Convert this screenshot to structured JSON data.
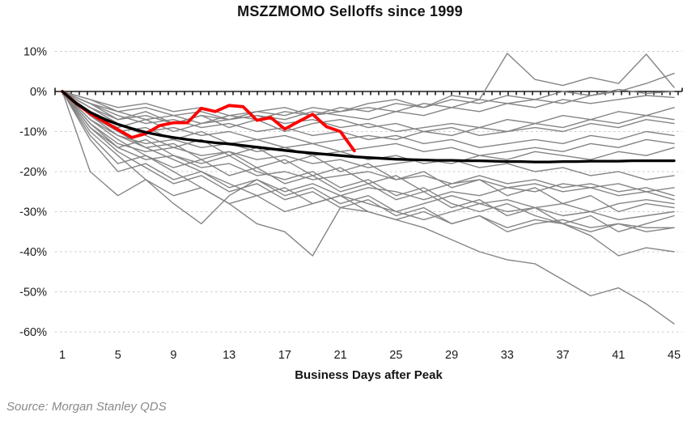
{
  "title": "MSZZMOMO Selloffs since 1999",
  "source": "Source: Morgan Stanley QDS",
  "colors": {
    "background": "#ffffff",
    "gridline": "#c9c9c9",
    "axis": "#1a1a1a",
    "text": "#1a1a1a",
    "source_text": "#8a8a8a",
    "historical": "#858585",
    "average": "#000000",
    "current": "#fe0000"
  },
  "chart_data": {
    "type": "line",
    "title": "MSZZMOMO Selloffs since 1999",
    "xlabel": "Business Days after Peak",
    "ylabel": "",
    "x_range_days": [
      1,
      45
    ],
    "y_range_pct": [
      -60,
      10
    ],
    "grid": "horizontal dashed gridlines every 10%; solid tick-marked axis line at 0%",
    "legend": "none",
    "x_ticks": [
      1,
      5,
      9,
      13,
      17,
      21,
      25,
      29,
      33,
      37,
      41,
      45
    ],
    "y_ticks": [
      {
        "label": "10%",
        "value": 10
      },
      {
        "label": "0%",
        "value": 0
      },
      {
        "label": "-10%",
        "value": -10
      },
      {
        "label": "-20%",
        "value": -20
      },
      {
        "label": "-30%",
        "value": -30
      },
      {
        "label": "-40%",
        "value": -40
      },
      {
        "label": "-50%",
        "value": -50
      },
      {
        "label": "-60%",
        "value": -60
      }
    ],
    "historical_x_days": [
      1,
      3,
      5,
      7,
      9,
      11,
      13,
      15,
      17,
      19,
      21,
      23,
      25,
      27,
      29,
      31,
      33,
      35,
      37,
      39,
      41,
      43,
      45
    ],
    "series": [
      {
        "name": "historical-selloff-01",
        "role": "historical",
        "color": "#858585",
        "width": 1.4,
        "x": "shared",
        "y": [
          0,
          -4,
          -7,
          -6,
          -8,
          -6,
          -7,
          -5,
          -6,
          -4,
          -5,
          -3,
          -2,
          -4,
          -1,
          -2,
          9.5,
          3,
          1.5,
          3.5,
          2,
          9.3,
          1
        ]
      },
      {
        "name": "historical-selloff-02",
        "role": "historical",
        "color": "#858585",
        "width": 1.4,
        "x": "shared",
        "y": [
          0,
          -3,
          -5,
          -7,
          -6,
          -8,
          -7,
          -6,
          -7,
          -5,
          -6,
          -7,
          -5,
          -6,
          -4,
          -5,
          -3,
          -2,
          -3,
          -1,
          0,
          2,
          4.5
        ]
      },
      {
        "name": "historical-selloff-03",
        "role": "historical",
        "color": "#858585",
        "width": 1.4,
        "x": "shared",
        "y": [
          0,
          -2,
          -4,
          -3,
          -5,
          -4,
          -6,
          -5,
          -4,
          -6,
          -5,
          -4,
          -5,
          -3,
          -4,
          -2,
          -3,
          -4,
          -2,
          -3,
          -2,
          -1,
          -1.5
        ]
      },
      {
        "name": "historical-selloff-04",
        "role": "historical",
        "color": "#858585",
        "width": 1.4,
        "x": "shared",
        "y": [
          0,
          -5,
          -8,
          -10,
          -9,
          -11,
          -10,
          -12,
          -11,
          -13,
          -12,
          -11,
          -12,
          -10,
          -11,
          -9,
          -10,
          -8,
          -9,
          -7,
          -8,
          -6,
          -7
        ]
      },
      {
        "name": "historical-selloff-05",
        "role": "historical",
        "color": "#858585",
        "width": 1.4,
        "x": "shared",
        "y": [
          0,
          -6,
          -10,
          -9,
          -12,
          -10,
          -13,
          -12,
          -14,
          -13,
          -15,
          -14,
          -13,
          -15,
          -14,
          -16,
          -15,
          -14,
          -15,
          -13,
          -14,
          -12,
          -13
        ]
      },
      {
        "name": "historical-selloff-06",
        "role": "historical",
        "color": "#858585",
        "width": 1.4,
        "x": "shared",
        "y": [
          0,
          -8,
          -13,
          -15,
          -14,
          -16,
          -15,
          -17,
          -16,
          -18,
          -17,
          -19,
          -18,
          -17,
          -18,
          -16,
          -17,
          -15,
          -16,
          -17,
          -15,
          -16,
          -14
        ]
      },
      {
        "name": "historical-selloff-07",
        "role": "historical",
        "color": "#858585",
        "width": 1.4,
        "x": "shared",
        "y": [
          0,
          -12,
          -20,
          -18,
          -22,
          -20,
          -24,
          -22,
          -25,
          -23,
          -26,
          -24,
          -25,
          -27,
          -25,
          -26,
          -24,
          -25,
          -23,
          -24,
          -26,
          -25,
          -27
        ]
      },
      {
        "name": "historical-selloff-08",
        "role": "historical",
        "color": "#858585",
        "width": 1.4,
        "x": "shared",
        "y": [
          0,
          -10,
          -16,
          -22,
          -28,
          -33,
          -26,
          -22,
          -26,
          -24,
          -28,
          -26,
          -30,
          -28,
          -26,
          -28,
          -27,
          -29,
          -28,
          -30,
          -28,
          -27,
          -28
        ]
      },
      {
        "name": "historical-selloff-09",
        "role": "historical",
        "color": "#858585",
        "width": 1.4,
        "x": "shared",
        "y": [
          0,
          -7,
          -12,
          -16,
          -20,
          -24,
          -28,
          -33,
          -35,
          -41,
          -29,
          -30,
          -32,
          -30,
          -33,
          -31,
          -34,
          -32,
          -33,
          -35,
          -33,
          -34,
          -34
        ]
      },
      {
        "name": "historical-selloff-10",
        "role": "historical",
        "color": "#858585",
        "width": 1.4,
        "x": "shared",
        "y": [
          0,
          -9,
          -15,
          -19,
          -23,
          -21,
          -25,
          -23,
          -27,
          -25,
          -29,
          -27,
          -31,
          -29,
          -33,
          -31,
          -35,
          -33,
          -32,
          -34,
          -33,
          -35,
          -34
        ]
      },
      {
        "name": "historical-selloff-11",
        "role": "historical",
        "color": "#858585",
        "width": 1.4,
        "x": "shared",
        "y": [
          0,
          -6,
          -11,
          -14,
          -17,
          -20,
          -23,
          -26,
          -24,
          -28,
          -26,
          -30,
          -32,
          -34,
          -37,
          -40,
          -42,
          -43,
          -47,
          -51,
          -49,
          -53,
          -58
        ]
      },
      {
        "name": "historical-selloff-12",
        "role": "historical",
        "color": "#858585",
        "width": 1.4,
        "x": "shared",
        "y": [
          0,
          -8,
          -14,
          -12,
          -16,
          -18,
          -16,
          -20,
          -22,
          -20,
          -24,
          -22,
          -26,
          -24,
          -28,
          -30,
          -28,
          -31,
          -33,
          -36,
          -41,
          -39,
          -40
        ]
      },
      {
        "name": "historical-selloff-13",
        "role": "historical",
        "color": "#858585",
        "width": 1.4,
        "x": "shared",
        "y": [
          0,
          -7,
          -11,
          -13,
          -12,
          -14,
          -13,
          -15,
          -14,
          -16,
          -15,
          -17,
          -16,
          -18,
          -17,
          -19,
          -18,
          -20,
          -19,
          -21,
          -20,
          -22,
          -21
        ]
      },
      {
        "name": "historical-selloff-14",
        "role": "historical",
        "color": "#858585",
        "width": 1.4,
        "x": "shared",
        "y": [
          0,
          -4,
          -8,
          -11,
          -14,
          -12,
          -16,
          -14,
          -18,
          -16,
          -20,
          -18,
          -22,
          -20,
          -24,
          -22,
          -26,
          -24,
          -28,
          -26,
          -30,
          -28,
          -29
        ]
      },
      {
        "name": "historical-selloff-15",
        "role": "historical",
        "color": "#858585",
        "width": 1.4,
        "x": "shared",
        "y": [
          0,
          -3,
          -6,
          -8,
          -7,
          -9,
          -8,
          -10,
          -9,
          -11,
          -10,
          -12,
          -11,
          -13,
          -12,
          -14,
          -13,
          -12,
          -13,
          -11,
          -12,
          -10,
          -11
        ]
      },
      {
        "name": "historical-selloff-16",
        "role": "historical",
        "color": "#858585",
        "width": 1.4,
        "x": "shared",
        "y": [
          0,
          -20,
          -26,
          -22,
          -26,
          -24,
          -28,
          -26,
          -30,
          -28,
          -26,
          -28,
          -30,
          -32,
          -30,
          -28,
          -30,
          -29,
          -31,
          -30,
          -32,
          -31,
          -30
        ]
      },
      {
        "name": "historical-selloff-17",
        "role": "historical",
        "color": "#858585",
        "width": 1.4,
        "x": "shared",
        "y": [
          0,
          -6,
          -9,
          -7,
          -10,
          -8,
          -6,
          -7,
          -5,
          -6,
          -4,
          -5,
          -3,
          -4,
          -2,
          -3,
          -1,
          -2,
          0,
          -1,
          0.5,
          -0.5,
          0
        ]
      },
      {
        "name": "historical-selloff-18",
        "role": "historical",
        "color": "#858585",
        "width": 1.4,
        "x": "shared",
        "y": [
          0,
          -5,
          -10,
          -14,
          -13,
          -17,
          -15,
          -19,
          -17,
          -21,
          -19,
          -23,
          -21,
          -25,
          -23,
          -21,
          -23,
          -22,
          -24,
          -23,
          -25,
          -24,
          -26
        ]
      },
      {
        "name": "historical-selloff-19",
        "role": "historical",
        "color": "#858585",
        "width": 1.4,
        "x": "shared",
        "y": [
          0,
          -2,
          -5,
          -4,
          -6,
          -5,
          -7,
          -6,
          -8,
          -7,
          -9,
          -8,
          -10,
          -9,
          -8,
          -9,
          -7,
          -8,
          -6,
          -7,
          -5,
          -6,
          -4
        ]
      },
      {
        "name": "historical-selloff-20",
        "role": "historical",
        "color": "#858585",
        "width": 1.4,
        "x": "shared",
        "y": [
          0,
          -3,
          -7,
          -5,
          -8,
          -6,
          -9,
          -7,
          -10,
          -8,
          -7,
          -9,
          -8,
          -10,
          -9,
          -11,
          -10,
          -9,
          -10,
          -8,
          -9,
          -7,
          -8
        ]
      },
      {
        "name": "historical-selloff-21",
        "role": "historical",
        "color": "#858585",
        "width": 1.4,
        "x": "shared",
        "y": [
          0,
          -9,
          -14,
          -17,
          -16,
          -19,
          -18,
          -21,
          -20,
          -22,
          -21,
          -20,
          -22,
          -21,
          -23,
          -22,
          -24,
          -23,
          -25,
          -24,
          -23,
          -25,
          -24
        ]
      },
      {
        "name": "historical-selloff-22",
        "role": "historical",
        "color": "#858585",
        "width": 1.4,
        "x": "shared",
        "y": [
          0,
          -11,
          -18,
          -16,
          -19,
          -17,
          -21,
          -19,
          -23,
          -21,
          -25,
          -23,
          -27,
          -25,
          -29,
          -27,
          -31,
          -29,
          -33,
          -31,
          -35,
          -33,
          -31
        ]
      },
      {
        "name": "current-selloff",
        "role": "current",
        "color": "#fe0000",
        "width": 3.8,
        "x": "daily",
        "y": [
          0,
          -3,
          -5.5,
          -7.5,
          -9.5,
          -11.5,
          -10.5,
          -8.5,
          -7.8,
          -7.8,
          -4.2,
          -5,
          -3.5,
          -3.8,
          -7.2,
          -6.5,
          -9.4,
          -7.5,
          -5.7,
          -8.8,
          -10,
          -14.8
        ]
      },
      {
        "name": "average-selloff",
        "role": "average",
        "color": "#000000",
        "width": 3.3,
        "x": "daily",
        "y": [
          0,
          -3,
          -5.2,
          -6.9,
          -8.2,
          -9.3,
          -10.2,
          -10.9,
          -11.5,
          -12,
          -12.4,
          -12.8,
          -13.1,
          -13.5,
          -13.9,
          -14.3,
          -14.7,
          -15.1,
          -15.4,
          -15.7,
          -16,
          -16.3,
          -16.5,
          -16.7,
          -16.9,
          -17,
          -17.1,
          -17.2,
          -17.2,
          -17.3,
          -17.3,
          -17.4,
          -17.5,
          -17.5,
          -17.6,
          -17.6,
          -17.5,
          -17.5,
          -17.4,
          -17.4,
          -17.4,
          -17.3,
          -17.3,
          -17.3,
          -17.3
        ]
      }
    ]
  }
}
